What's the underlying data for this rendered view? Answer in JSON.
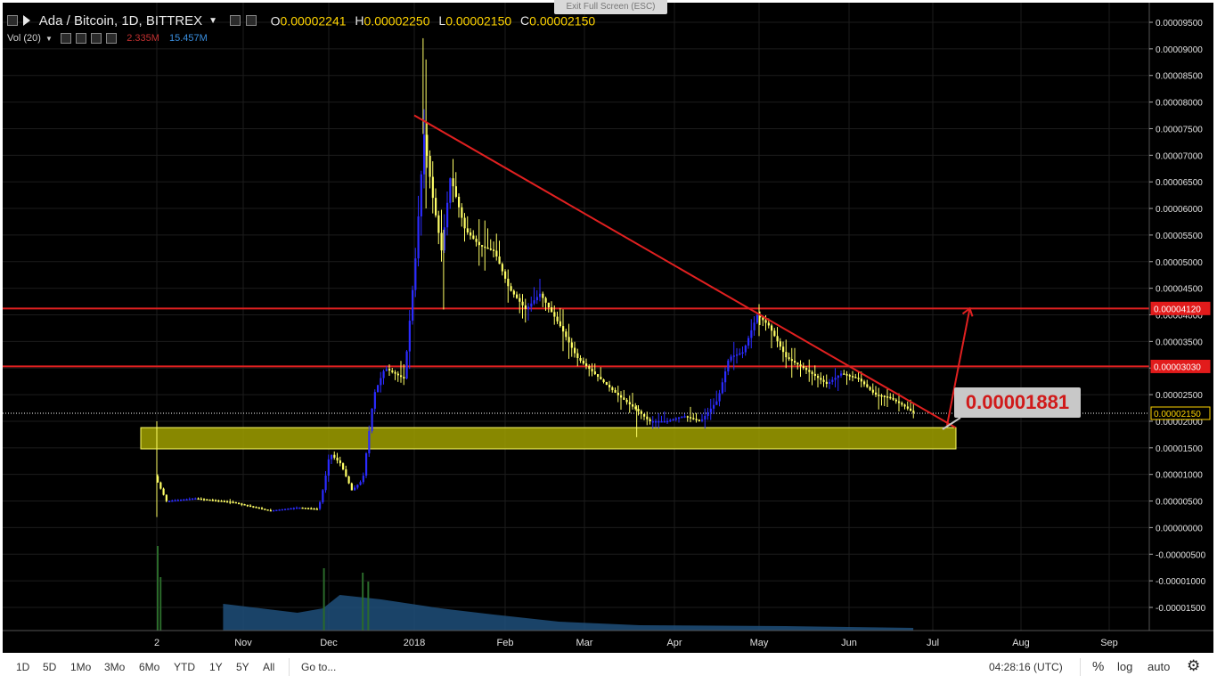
{
  "header": {
    "symbol": "Ada / Bitcoin, 1D, BITTREX",
    "o_label": "O",
    "o_value": "0.00002241",
    "h_label": "H",
    "h_value": "0.00002250",
    "l_label": "L",
    "l_value": "0.00002150",
    "c_label": "C",
    "c_value": "0.00002150",
    "exit_fullscreen": "Exit Full Screen (ESC)"
  },
  "volume_legend": {
    "label": "Vol (20)",
    "value1": "2.335M",
    "value2": "15.457M",
    "color1": "#c03030",
    "color2": "#3a8fe0"
  },
  "bottom_bar": {
    "ranges": [
      "1D",
      "5D",
      "1Mo",
      "3Mo",
      "6Mo",
      "YTD",
      "1Y",
      "5Y",
      "All"
    ],
    "goto": "Go to...",
    "clock": "04:28:16 (UTC)",
    "percent": "%",
    "log": "log",
    "auto": "auto",
    "settings_icon": "gear-icon"
  },
  "colors": {
    "background": "#000000",
    "up_candle": "#2b2bff",
    "down_candle": "#ffff66",
    "trendline": "#e02020",
    "support_zone": "#a0a000"
  },
  "chart_data": {
    "type": "candlestick",
    "title": "",
    "y_axis": {
      "ticks": [
        "0.00009500",
        "0.00009000",
        "0.00008500",
        "0.00008000",
        "0.00007500",
        "0.00007000",
        "0.00006500",
        "0.00006000",
        "0.00005500",
        "0.00005000",
        "0.00004500",
        "0.00004000",
        "0.00003500",
        "0.00003000",
        "0.00002500",
        "0.00002000",
        "0.00001500",
        "0.00001000",
        "0.00000500",
        "0.00000000",
        "-0.00000500",
        "-0.00001000",
        "-0.00001500"
      ],
      "range": [
        -1.9e-05,
        9.85e-05
      ]
    },
    "x_axis": {
      "ticks": [
        "2",
        "Nov",
        "Dec",
        "2018",
        "Feb",
        "Mar",
        "Apr",
        "May",
        "Jun",
        "Jul",
        "Aug",
        "Sep"
      ]
    },
    "price_labels": [
      {
        "text": "0.00004120",
        "value": 4.12e-05,
        "style": "red"
      },
      {
        "text": "0.00003030",
        "value": 3.03e-05,
        "style": "red"
      },
      {
        "text": "0.00002150",
        "value": 2.15e-05,
        "style": "current"
      }
    ],
    "horizontal_lines": [
      4.12e-05,
      3.03e-05
    ],
    "support_zone": {
      "low": 1.48e-05,
      "high": 1.88e-05
    },
    "annotation": {
      "text": "0.00001881"
    },
    "price_path": [
      {
        "d": "2017-10-02",
        "p": 8.5e-06
      },
      {
        "d": "2017-10-05",
        "p": 5e-06
      },
      {
        "d": "2017-10-15",
        "p": 5.5e-06
      },
      {
        "d": "2017-10-28",
        "p": 4.8e-06
      },
      {
        "d": "2017-11-10",
        "p": 3.2e-06
      },
      {
        "d": "2017-11-20",
        "p": 3.8e-06
      },
      {
        "d": "2017-11-27",
        "p": 3.5e-06
      },
      {
        "d": "2017-11-29",
        "p": 8e-06
      },
      {
        "d": "2017-12-01",
        "p": 1.4e-05
      },
      {
        "d": "2017-12-05",
        "p": 1.2e-05
      },
      {
        "d": "2017-12-09",
        "p": 7e-06
      },
      {
        "d": "2017-12-13",
        "p": 9e-06
      },
      {
        "d": "2017-12-17",
        "p": 2.5e-05
      },
      {
        "d": "2017-12-21",
        "p": 3e-05
      },
      {
        "d": "2017-12-28",
        "p": 2.8e-05
      },
      {
        "d": "2018-01-01",
        "p": 5e-05
      },
      {
        "d": "2018-01-04",
        "p": 7.4e-05
      },
      {
        "d": "2018-01-07",
        "p": 6.2e-05
      },
      {
        "d": "2018-01-10",
        "p": 5.2e-05
      },
      {
        "d": "2018-01-13",
        "p": 6.6e-05
      },
      {
        "d": "2018-01-18",
        "p": 5.6e-05
      },
      {
        "d": "2018-01-23",
        "p": 5.3e-05
      },
      {
        "d": "2018-01-28",
        "p": 5.2e-05
      },
      {
        "d": "2018-02-02",
        "p": 4.5e-05
      },
      {
        "d": "2018-02-08",
        "p": 4.1e-05
      },
      {
        "d": "2018-02-13",
        "p": 4.4e-05
      },
      {
        "d": "2018-02-20",
        "p": 3.8e-05
      },
      {
        "d": "2018-02-26",
        "p": 3.2e-05
      },
      {
        "d": "2018-03-04",
        "p": 2.9e-05
      },
      {
        "d": "2018-03-12",
        "p": 2.5e-05
      },
      {
        "d": "2018-03-19",
        "p": 2.2e-05
      },
      {
        "d": "2018-03-23",
        "p": 2e-05
      },
      {
        "d": "2018-03-29",
        "p": 2e-05
      },
      {
        "d": "2018-04-04",
        "p": 2.1e-05
      },
      {
        "d": "2018-04-10",
        "p": 2e-05
      },
      {
        "d": "2018-04-16",
        "p": 2.4e-05
      },
      {
        "d": "2018-04-20",
        "p": 3.2e-05
      },
      {
        "d": "2018-04-25",
        "p": 3.3e-05
      },
      {
        "d": "2018-04-30",
        "p": 4e-05
      },
      {
        "d": "2018-05-04",
        "p": 3.8e-05
      },
      {
        "d": "2018-05-10",
        "p": 3.2e-05
      },
      {
        "d": "2018-05-16",
        "p": 3e-05
      },
      {
        "d": "2018-05-24",
        "p": 2.7e-05
      },
      {
        "d": "2018-05-29",
        "p": 2.9e-05
      },
      {
        "d": "2018-06-04",
        "p": 2.8e-05
      },
      {
        "d": "2018-06-10",
        "p": 2.5e-05
      },
      {
        "d": "2018-06-15",
        "p": 2.45e-05
      },
      {
        "d": "2018-06-20",
        "p": 2.3e-05
      },
      {
        "d": "2018-06-24",
        "p": 2.15e-05
      }
    ],
    "trendlines": [
      {
        "from": {
          "d": "2018-01-01",
          "p": 7.75e-05
        },
        "to": {
          "d": "2018-07-09",
          "p": 1.88e-05
        }
      },
      {
        "from": {
          "d": "2018-07-06",
          "p": 1.92e-05
        },
        "to": {
          "d": "2018-07-14",
          "p": 4.12e-05
        }
      }
    ]
  }
}
